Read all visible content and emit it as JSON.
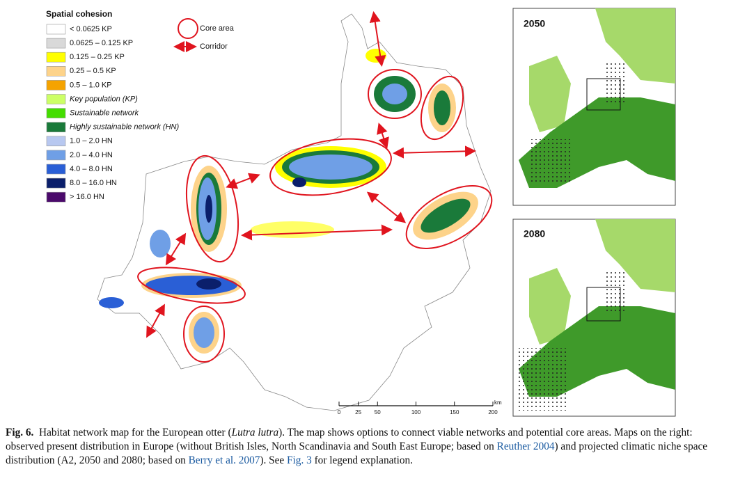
{
  "figure": {
    "legend": {
      "title": "Spatial cohesion",
      "items": [
        {
          "label": "< 0.0625 KP",
          "color": "#ffffff"
        },
        {
          "label": "0.0625 – 0.125 KP",
          "color": "#d9d9d9"
        },
        {
          "label": "0.125 – 0.25 KP",
          "color": "#ffff00"
        },
        {
          "label": "0.25 – 0.5 KP",
          "color": "#fdd38a"
        },
        {
          "label": "0.5 – 1.0 KP",
          "color": "#f5a300"
        },
        {
          "label": "Key population (KP)",
          "color": "#ccff66"
        },
        {
          "label": "Sustainable network",
          "color": "#44dd00"
        },
        {
          "label": "Highly sustainable network (HN)",
          "color": "#1a7a3a"
        },
        {
          "label": "1.0 – 2.0 HN",
          "color": "#b8c8f0"
        },
        {
          "label": "2.0 – 4.0 HN",
          "color": "#6f9fe6"
        },
        {
          "label": "4.0 – 8.0 HN",
          "color": "#2a5fd6"
        },
        {
          "label": "8.0 – 16.0 HN",
          "color": "#0b1f6b"
        },
        {
          "label": "> 16.0 HN",
          "color": "#4b0a6b"
        }
      ]
    },
    "symbols": {
      "core_area": "Core area",
      "corridor": "Corridor"
    },
    "scale_bar": {
      "ticks": [
        0,
        25,
        50,
        100,
        150,
        200
      ],
      "unit": "km"
    },
    "insets": [
      "2050",
      "2080"
    ],
    "caption": {
      "label": "Fig. 6.",
      "parts": [
        "Habitat network map for the European otter (",
        "Lutra lutra",
        "). The map shows options to connect viable networks and potential core areas. Maps on the right: observed present distribution in Europe (without British Isles, North Scandinavia and South East Europe; based on ",
        "Reuther 2004",
        ") and projected climatic niche space distribution (A2, 2050 and 2080; based on ",
        "Berry et al. 2007",
        "). See ",
        "Fig. 3",
        " for legend explanation."
      ]
    }
  }
}
